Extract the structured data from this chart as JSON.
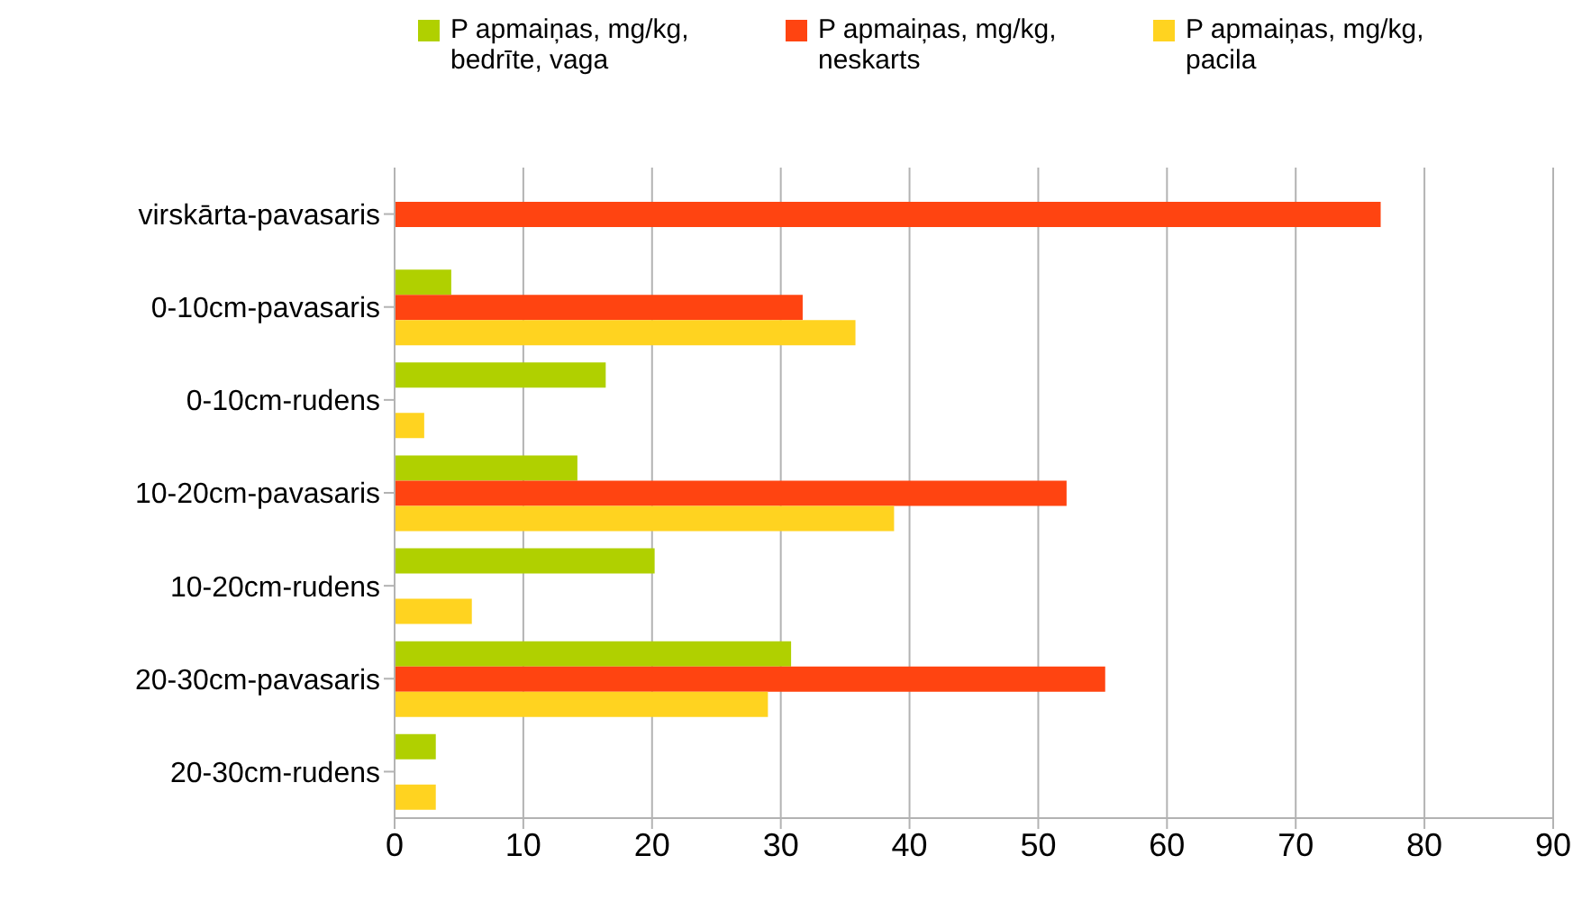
{
  "chart_data": {
    "type": "bar",
    "orientation": "horizontal",
    "categories": [
      "virskārta-pavasaris",
      "0-10cm-pavasaris",
      "0-10cm-rudens",
      "10-20cm-pavasaris",
      "10-20cm-rudens",
      "20-30cm-pavasaris",
      "20-30cm-rudens"
    ],
    "series": [
      {
        "name": "P apmaiņas, mg/kg, bedrīte, vaga",
        "color": "#b0d000",
        "values": [
          null,
          4.4,
          16.4,
          14.2,
          20.2,
          30.8,
          3.2
        ]
      },
      {
        "name": "P apmaiņas, mg/kg, neskarts",
        "color": "#ff4411",
        "values": [
          76.6,
          31.7,
          null,
          52.2,
          null,
          55.2,
          null
        ]
      },
      {
        "name": "P apmaiņas, mg/kg, pacila",
        "color": "#ffd320",
        "values": [
          null,
          35.8,
          2.3,
          38.8,
          6.0,
          29.0,
          3.2
        ]
      }
    ],
    "xlim": [
      0,
      90
    ],
    "xticks": [
      0,
      10,
      20,
      30,
      40,
      50,
      60,
      70,
      80,
      90
    ],
    "grid": "x",
    "legend": "top"
  }
}
